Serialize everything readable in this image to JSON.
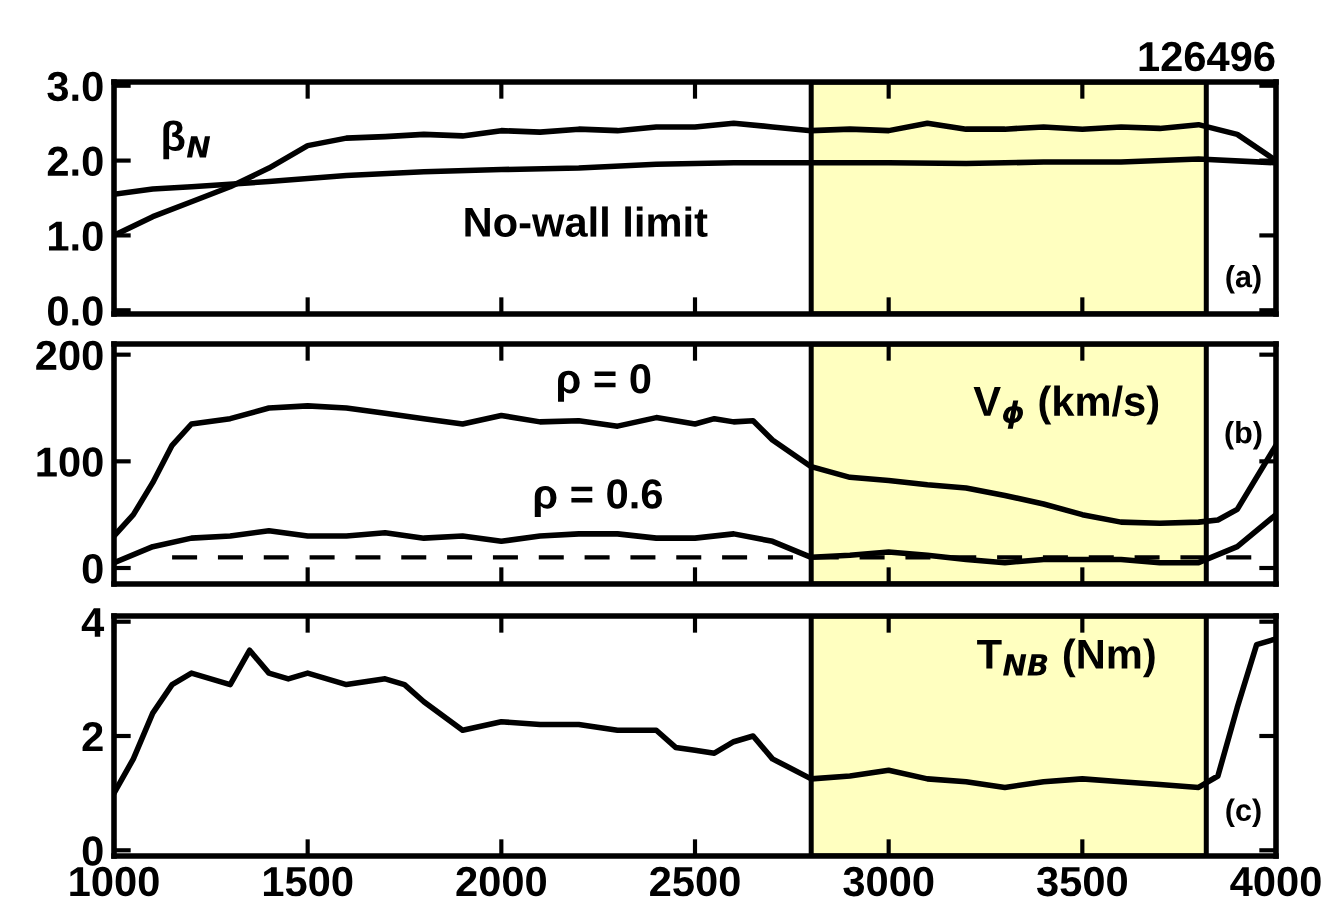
{
  "chart_data": [
    {
      "type": "line",
      "title": "126496",
      "annotations": [
        "(a)"
      ],
      "xlim": [
        1000,
        4000
      ],
      "xticks": [
        1000,
        1500,
        2000,
        2500,
        3000,
        3500,
        4000
      ],
      "ylim": [
        -0.05,
        3.05
      ],
      "yticks": [
        {
          "value": 0,
          "label": "0.0"
        },
        {
          "value": 1,
          "label": "1.0"
        },
        {
          "value": 2,
          "label": "2.0"
        },
        {
          "value": 3,
          "label": "3.0"
        }
      ],
      "tick_labels": "y",
      "bands": [
        {
          "axis": "x",
          "from": 2800,
          "to": 3820,
          "color": "#ffffc0"
        }
      ],
      "series": [
        {
          "name": "β$_{N}$",
          "color": "#000000",
          "x": [
            1000,
            1100,
            1200,
            1300,
            1400,
            1500,
            1600,
            1700,
            1800,
            1900,
            2000,
            2100,
            2200,
            2300,
            2400,
            2500,
            2600,
            2700,
            2800,
            2900,
            3000,
            3100,
            3200,
            3300,
            3400,
            3500,
            3600,
            3700,
            3800,
            3900,
            4000
          ],
          "values": [
            1.0,
            1.25,
            1.45,
            1.65,
            1.9,
            2.2,
            2.3,
            2.32,
            2.35,
            2.33,
            2.4,
            2.38,
            2.42,
            2.4,
            2.45,
            2.45,
            2.5,
            2.45,
            2.4,
            2.42,
            2.4,
            2.5,
            2.42,
            2.42,
            2.45,
            2.42,
            2.45,
            2.43,
            2.48,
            2.35,
            2.0
          ]
        },
        {
          "name": "No-wall limit",
          "color": "#000000",
          "x": [
            1000,
            1100,
            1200,
            1400,
            1600,
            1800,
            2000,
            2200,
            2400,
            2600,
            2800,
            3000,
            3200,
            3400,
            3600,
            3800,
            4000
          ],
          "values": [
            1.55,
            1.62,
            1.65,
            1.72,
            1.8,
            1.85,
            1.88,
            1.9,
            1.95,
            1.97,
            1.97,
            1.97,
            1.96,
            1.98,
            1.98,
            2.02,
            1.97
          ]
        }
      ]
    },
    {
      "type": "line",
      "ylabel": "V$_{ϕ}$ (km/s)",
      "annotations": [
        "(b)"
      ],
      "xlim": [
        1000,
        4000
      ],
      "xticks": [
        1000,
        1500,
        2000,
        2500,
        3000,
        3500,
        4000
      ],
      "ylim": [
        -15,
        210
      ],
      "yticks": [
        0,
        100,
        200
      ],
      "tick_labels": "y",
      "bands": [
        {
          "axis": "x",
          "from": 2800,
          "to": 3820,
          "color": "#ffffc0"
        }
      ],
      "ref_lines": [
        {
          "axis": "y",
          "value": 10,
          "color": "#000000",
          "line_style": "dashed"
        }
      ],
      "series": [
        {
          "name": "ρ = 0",
          "color": "#000000",
          "x": [
            1000,
            1050,
            1100,
            1150,
            1200,
            1300,
            1400,
            1500,
            1600,
            1700,
            1800,
            1900,
            2000,
            2100,
            2200,
            2300,
            2400,
            2500,
            2550,
            2600,
            2650,
            2700,
            2800,
            2900,
            3000,
            3100,
            3200,
            3300,
            3400,
            3500,
            3600,
            3700,
            3800,
            3850,
            3900,
            4000
          ],
          "values": [
            30,
            50,
            80,
            115,
            135,
            140,
            150,
            152,
            150,
            145,
            140,
            135,
            143,
            137,
            138,
            133,
            141,
            135,
            140,
            137,
            138,
            120,
            95,
            85,
            82,
            78,
            75,
            68,
            60,
            50,
            43,
            42,
            43,
            45,
            55,
            115
          ]
        },
        {
          "name": "ρ = 0.6",
          "color": "#000000",
          "x": [
            1000,
            1100,
            1200,
            1300,
            1400,
            1500,
            1600,
            1700,
            1800,
            1900,
            2000,
            2100,
            2200,
            2300,
            2400,
            2500,
            2600,
            2700,
            2800,
            2900,
            3000,
            3100,
            3200,
            3300,
            3400,
            3500,
            3600,
            3700,
            3800,
            3900,
            4000
          ],
          "values": [
            5,
            20,
            28,
            30,
            35,
            30,
            30,
            33,
            28,
            30,
            25,
            30,
            32,
            32,
            28,
            28,
            32,
            25,
            10,
            12,
            15,
            12,
            8,
            5,
            8,
            8,
            8,
            5,
            5,
            20,
            50
          ]
        }
      ]
    },
    {
      "type": "line",
      "ylabel": "T$_{NB}$ (Nm)",
      "annotations": [
        "(c)"
      ],
      "xlim": [
        1000,
        4000
      ],
      "xticks": [
        1000,
        1500,
        2000,
        2500,
        3000,
        3500,
        4000
      ],
      "ylim": [
        -0.1,
        4.1
      ],
      "yticks": [
        0,
        2,
        4
      ],
      "bands": [
        {
          "axis": "x",
          "from": 2800,
          "to": 3820,
          "color": "#ffffc0"
        }
      ],
      "series": [
        {
          "color": "#000000",
          "x": [
            1000,
            1050,
            1100,
            1150,
            1200,
            1250,
            1300,
            1350,
            1400,
            1450,
            1500,
            1600,
            1700,
            1750,
            1800,
            1900,
            2000,
            2100,
            2200,
            2300,
            2400,
            2450,
            2500,
            2550,
            2600,
            2650,
            2700,
            2800,
            2900,
            3000,
            3100,
            3200,
            3300,
            3400,
            3500,
            3600,
            3700,
            3800,
            3850,
            3900,
            3950,
            4000
          ],
          "values": [
            1.0,
            1.6,
            2.4,
            2.9,
            3.1,
            3.0,
            2.9,
            3.5,
            3.1,
            3.0,
            3.1,
            2.9,
            3.0,
            2.9,
            2.6,
            2.1,
            2.25,
            2.2,
            2.2,
            2.1,
            2.1,
            1.8,
            1.75,
            1.7,
            1.9,
            2.0,
            1.6,
            1.25,
            1.3,
            1.4,
            1.25,
            1.2,
            1.1,
            1.2,
            1.25,
            1.2,
            1.15,
            1.1,
            1.3,
            2.5,
            3.6,
            3.7
          ]
        }
      ]
    }
  ]
}
